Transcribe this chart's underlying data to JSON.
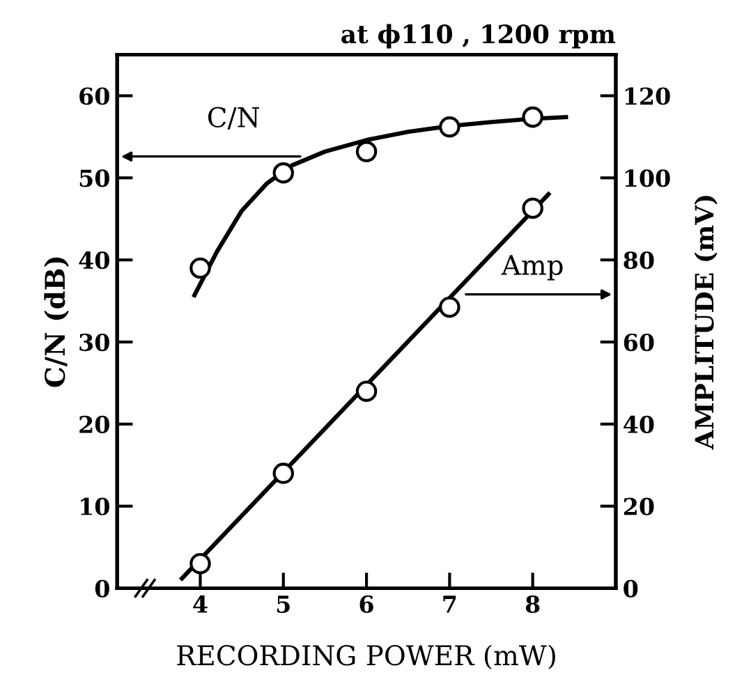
{
  "chart_data": {
    "type": "scatter",
    "title": "at ϕ110 , 1200 rpm",
    "xlabel": "RECORDING POWER (mW)",
    "ylabel": "C/N (dB)",
    "y2label": "AMPLITUDE (mV)",
    "xlim": [
      3,
      9
    ],
    "xticks": [
      4,
      5,
      6,
      7,
      8
    ],
    "ylim": [
      0,
      65
    ],
    "yticks": [
      0,
      10,
      20,
      30,
      40,
      50,
      60
    ],
    "y2lim": [
      0,
      130
    ],
    "y2ticks": [
      0,
      20,
      40,
      60,
      80,
      100,
      120
    ],
    "grid": false,
    "legend": false,
    "line_style": "solid",
    "series": [
      {
        "name": "C/N",
        "marker": "circle",
        "color": "#000000",
        "x": [
          4,
          5,
          6,
          7,
          8
        ],
        "values": [
          39,
          50.6,
          53.2,
          56.2,
          57.4
        ]
      },
      {
        "type": "line",
        "color": "#000000",
        "x": [
          3.93,
          4.2,
          4.5,
          4.8,
          5.1,
          5.5,
          6,
          6.5,
          7,
          7.5,
          8,
          8.4
        ],
        "values": [
          35.7,
          41,
          46,
          49.3,
          51.5,
          53.2,
          54.6,
          55.6,
          56.3,
          56.8,
          57.2,
          57.4
        ]
      },
      {
        "name": "Amp",
        "marker": "circle",
        "axis": "y2",
        "color": "#000000",
        "x": [
          4,
          5,
          6,
          7,
          8
        ],
        "values": [
          6,
          28,
          48,
          68.5,
          92.6
        ]
      },
      {
        "type": "line",
        "axis": "y2",
        "color": "#000000",
        "x": [
          3.78,
          8.19
        ],
        "values": [
          2.4,
          96
        ]
      }
    ]
  }
}
